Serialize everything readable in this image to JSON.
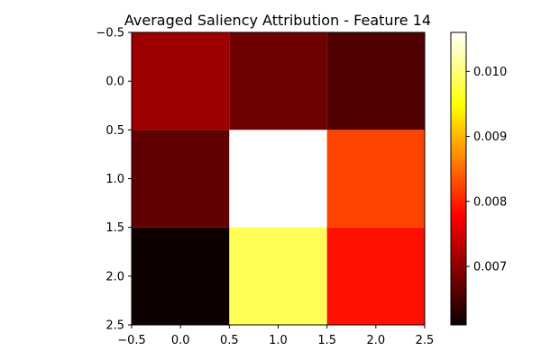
{
  "chart_data": {
    "type": "heatmap",
    "title": "Averaged Saliency Attribution - Feature 14",
    "xlabel": "",
    "ylabel": "",
    "grid": false,
    "colormap": "hot",
    "x_ticks": [
      "−0.5",
      "0.0",
      "0.5",
      "1.0",
      "1.5",
      "2.0",
      "2.5"
    ],
    "y_ticks": [
      "−0.5",
      "0.0",
      "0.5",
      "1.0",
      "1.5",
      "2.0",
      "2.5"
    ],
    "xlim": [
      -0.5,
      2.5
    ],
    "ylim": [
      2.5,
      -0.5
    ],
    "values": [
      [
        0.00705,
        0.00675,
        0.00655
      ],
      [
        0.00665,
        0.0106,
        0.0082
      ],
      [
        0.00612,
        0.00985,
        0.00785
      ]
    ],
    "colorbar": {
      "vmin": 0.0061,
      "vmax": 0.0106,
      "ticks": [
        0.007,
        0.008,
        0.009,
        0.01
      ],
      "tick_labels": [
        "0.007",
        "0.008",
        "0.009",
        "0.010"
      ]
    }
  }
}
